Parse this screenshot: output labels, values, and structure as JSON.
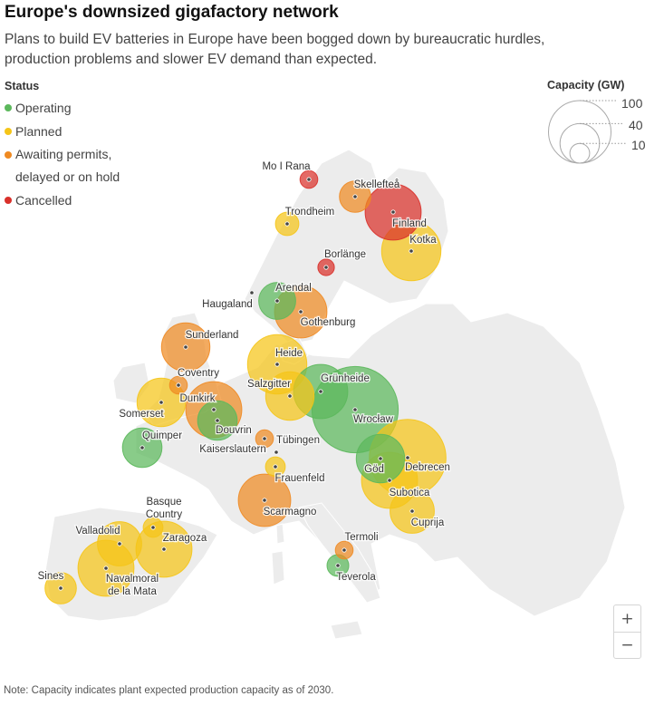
{
  "title": "Europe's downsized gigafactory network",
  "subtitle": "Plans to build EV batteries in Europe have been bogged down by bureaucratic hurdles, production problems and slower EV demand than expected.",
  "legend": {
    "title": "Status",
    "items": [
      {
        "label": "Operating",
        "color": "#5cb85c"
      },
      {
        "label": "Planned",
        "color": "#f5c518"
      },
      {
        "label": "Awaiting permits, delayed or on hold",
        "color": "#ef8a22"
      },
      {
        "label": "Cancelled",
        "color": "#d9302a"
      }
    ]
  },
  "size_legend": {
    "title": "Capacity (GW)",
    "values": [
      "100",
      "40",
      "10"
    ]
  },
  "colors": {
    "Operating": "#5cb85c",
    "Planned": "#f5c518",
    "Awaiting": "#ef8a22",
    "Cancelled": "#d9302a",
    "land": "#ececec"
  },
  "zoom": {
    "in_label": "+",
    "out_label": "−"
  },
  "note": "Note: Capacity indicates plant expected production capacity as of 2030.",
  "sites": [
    {
      "name": "Mo I Rana",
      "status": "Cancelled",
      "gw": 8
    },
    {
      "name": "Skellefteå",
      "status": "Awaiting",
      "gw": 25
    },
    {
      "name": "Finland",
      "status": "Cancelled",
      "gw": 80
    },
    {
      "name": "Trondheim",
      "status": "Planned",
      "gw": 14
    },
    {
      "name": "Kotka",
      "status": "Planned",
      "gw": 90
    },
    {
      "name": "Borlänge",
      "status": "Cancelled",
      "gw": 7
    },
    {
      "name": "Haugaland",
      "status": "None",
      "gw": 0
    },
    {
      "name": "Arendal",
      "status": "Operating",
      "gw": 35
    },
    {
      "name": "Gothenburg",
      "status": "Awaiting",
      "gw": 70
    },
    {
      "name": "Sunderland",
      "status": "Awaiting",
      "gw": 60
    },
    {
      "name": "Heide",
      "status": "Planned",
      "gw": 90
    },
    {
      "name": "Coventry",
      "status": "Awaiting",
      "gw": 8
    },
    {
      "name": "Grünheide",
      "status": "Operating",
      "gw": 75
    },
    {
      "name": "Salzgitter",
      "status": "Planned",
      "gw": 60
    },
    {
      "name": "Dunkirk",
      "status": "Awaiting",
      "gw": 80
    },
    {
      "name": "Somerset",
      "status": "Planned",
      "gw": 60
    },
    {
      "name": "Wrocław",
      "status": "Operating",
      "gw": 190
    },
    {
      "name": "Douvrin",
      "status": "Operating",
      "gw": 40
    },
    {
      "name": "Quimper",
      "status": "Operating",
      "gw": 40
    },
    {
      "name": "Tübingen",
      "status": "Awaiting",
      "gw": 8
    },
    {
      "name": "Kaiserslautern",
      "status": "None",
      "gw": 0
    },
    {
      "name": "Debrecen",
      "status": "Planned",
      "gw": 150
    },
    {
      "name": "Frauenfeld",
      "status": "Planned",
      "gw": 10
    },
    {
      "name": "Göd",
      "status": "Operating",
      "gw": 60
    },
    {
      "name": "Subotica",
      "status": "Planned",
      "gw": 80
    },
    {
      "name": "Scarmagno",
      "status": "Awaiting",
      "gw": 70
    },
    {
      "name": "Cuprija",
      "status": "Planned",
      "gw": 50
    },
    {
      "name": "Basque Country",
      "status": "Planned",
      "gw": 10
    },
    {
      "name": "Valladolid",
      "status": "Planned",
      "gw": 50
    },
    {
      "name": "Zaragoza",
      "status": "Planned",
      "gw": 80
    },
    {
      "name": "Termoli",
      "status": "Awaiting",
      "gw": 8
    },
    {
      "name": "Teverola",
      "status": "Operating",
      "gw": 12
    },
    {
      "name": "Sines",
      "status": "Planned",
      "gw": 25
    },
    {
      "name": "Navalmoral de la Mata",
      "status": "Planned",
      "gw": 80
    }
  ]
}
